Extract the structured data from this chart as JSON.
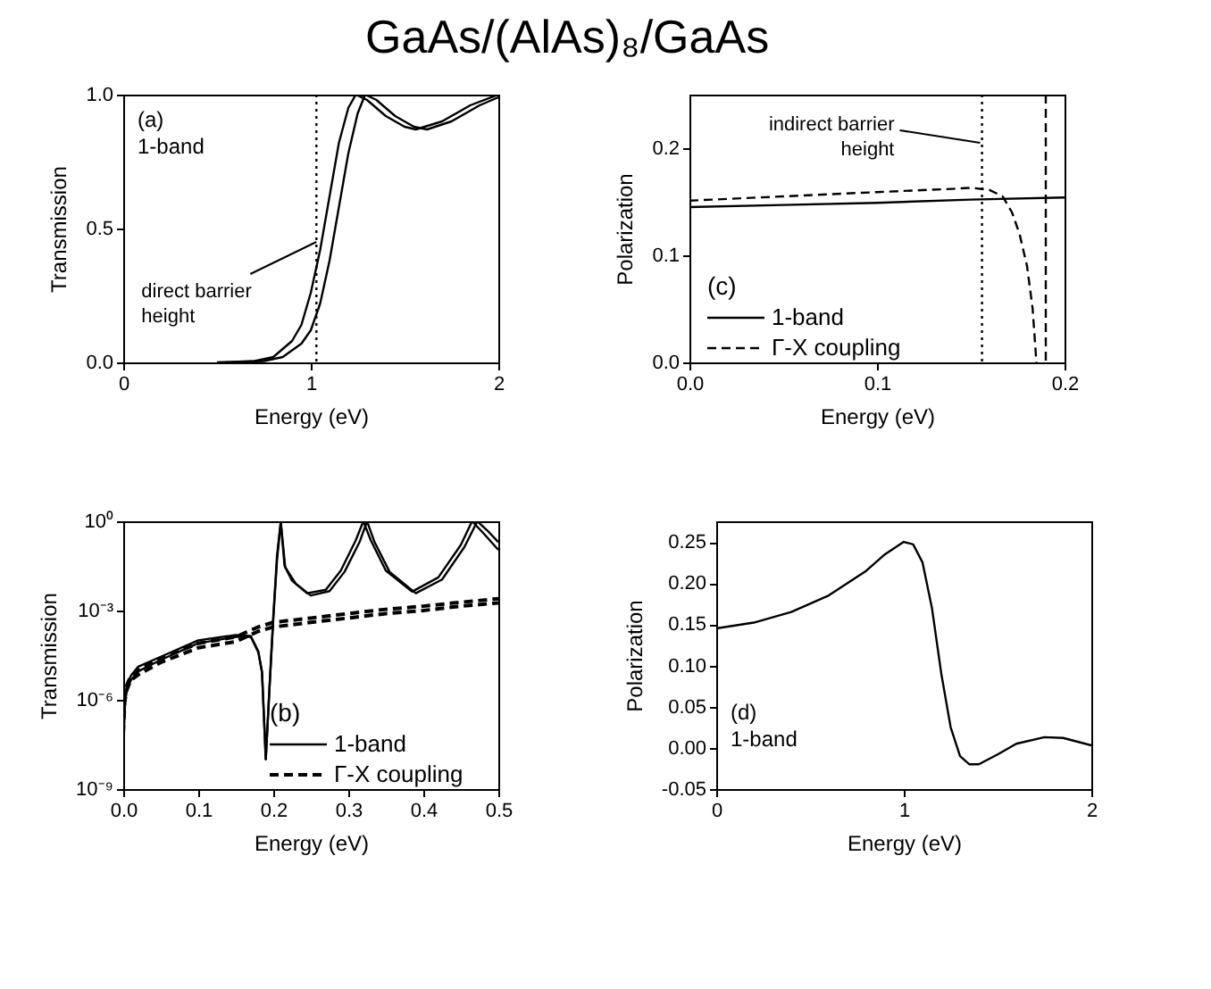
{
  "chart_data": [
    {
      "type": "line",
      "title": "GaAs/(AlAs)₈/GaAs",
      "xlabel": "Energy (eV)",
      "ylabel": "Transmission",
      "xlim": [
        0,
        2
      ],
      "xticks": [
        0,
        1,
        2
      ],
      "ylim": [
        0,
        1
      ],
      "yticks": [
        {
          "value": 0,
          "label": "0.0"
        },
        {
          "value": 0.5,
          "label": "0.5"
        },
        {
          "value": 1,
          "label": "1.0"
        }
      ],
      "grid": false,
      "series": [
        {
          "color": "#000000",
          "x": [
            0.5,
            0.7,
            0.8,
            0.9,
            0.95,
            1.0,
            1.05,
            1.1,
            1.15,
            1.2,
            1.24,
            1.3,
            1.4,
            1.5,
            1.56,
            1.7,
            1.85,
            2.0
          ],
          "values": [
            0,
            0.005,
            0.02,
            0.08,
            0.14,
            0.26,
            0.42,
            0.62,
            0.82,
            0.95,
            1.0,
            0.98,
            0.92,
            0.88,
            0.87,
            0.9,
            0.96,
            1.0
          ]
        },
        {
          "color": "#000000",
          "x": [
            0.55,
            0.75,
            0.85,
            0.95,
            1.0,
            1.05,
            1.1,
            1.15,
            1.2,
            1.25,
            1.29,
            1.35,
            1.45,
            1.55,
            1.62,
            1.75,
            1.9,
            2.0
          ],
          "values": [
            0,
            0.005,
            0.02,
            0.07,
            0.12,
            0.22,
            0.38,
            0.58,
            0.78,
            0.93,
            1.0,
            0.98,
            0.92,
            0.88,
            0.87,
            0.9,
            0.96,
            0.99
          ]
        }
      ],
      "ref_lines": [
        {
          "axis": "x",
          "value": 1.03,
          "line_style": "dotted",
          "color": "#000000"
        }
      ],
      "annotations": [
        "(a)",
        "1-band",
        {
          "text": "direct barrier height",
          "x": 1.03,
          "y": 0.45
        }
      ]
    },
    {
      "type": "line",
      "xlabel": "Energy (eV)",
      "ylabel": "Polarization",
      "xlim": [
        0,
        0.2
      ],
      "xticks": [
        {
          "value": 0,
          "label": "0.0"
        },
        {
          "value": 0.1,
          "label": "0.1"
        },
        {
          "value": 0.2,
          "label": "0.2"
        }
      ],
      "ylim": [
        0,
        0.25
      ],
      "yticks": [
        {
          "value": 0,
          "label": "0.0"
        },
        {
          "value": 0.1,
          "label": "0.1"
        },
        {
          "value": 0.2,
          "label": "0.2"
        }
      ],
      "grid": false,
      "legend": "bottom left",
      "legend_title": "(c)",
      "series": [
        {
          "name": "1-band",
          "color": "#000000",
          "line_style": "solid",
          "x": [
            0,
            0.05,
            0.1,
            0.15,
            0.2
          ],
          "values": [
            0.145,
            0.147,
            0.149,
            0.152,
            0.154
          ]
        },
        {
          "name": "Γ-X coupling",
          "color": "#000000",
          "line_style": "dashed",
          "x": [
            0,
            0.05,
            0.1,
            0.14,
            0.15,
            0.16,
            0.167,
            0.172,
            0.176,
            0.18,
            0.183,
            0.185
          ],
          "values": [
            0.151,
            0.155,
            0.159,
            0.162,
            0.163,
            0.161,
            0.155,
            0.14,
            0.12,
            0.09,
            0.05,
            0
          ]
        }
      ],
      "ref_lines": [
        {
          "axis": "x",
          "value": 0.156,
          "line_style": "dotted",
          "color": "#000000"
        },
        {
          "axis": "x",
          "value": 0.19,
          "line_style": "dashed",
          "color": "#000000"
        }
      ],
      "annotations": [
        {
          "text": "indirect barrier height",
          "x": 0.155,
          "y": 0.205
        }
      ]
    },
    {
      "type": "line",
      "xlabel": "Energy (eV)",
      "ylabel": "Transmission",
      "log": "y",
      "xlim": [
        0,
        0.5
      ],
      "xticks": [
        {
          "value": 0,
          "label": "0.0"
        },
        {
          "value": 0.1,
          "label": "0.1"
        },
        {
          "value": 0.2,
          "label": "0.2"
        },
        {
          "value": 0.3,
          "label": "0.3"
        },
        {
          "value": 0.4,
          "label": "0.4"
        },
        {
          "value": 0.5,
          "label": "0.5"
        }
      ],
      "ylim": [
        1e-09,
        1
      ],
      "yticks": [
        {
          "value": 1e-09,
          "label": "10⁻⁹"
        },
        {
          "value": 1e-06,
          "label": "10⁻⁶"
        },
        {
          "value": 0.001,
          "label": "10⁻³"
        },
        {
          "value": 1,
          "label": "10⁰"
        }
      ],
      "grid": false,
      "legend": "bottom right",
      "legend_title": "(b)",
      "series": [
        {
          "name": "1-band",
          "color": "#000000",
          "line_style": "solid",
          "x": [
            0,
            0.002,
            0.005,
            0.01,
            0.02,
            0.05,
            0.1,
            0.15,
            0.17,
            0.18,
            0.185,
            0.19,
            0.195,
            0.2,
            0.205,
            0.21,
            0.215,
            0.225,
            0.245,
            0.27,
            0.29,
            0.31,
            0.32,
            0.33,
            0.35,
            0.385,
            0.42,
            0.45,
            0.465,
            0.48,
            0.5
          ],
          "values": [
            5e-08,
            1e-06,
            3.2e-06,
            6.3e-06,
            1.3e-05,
            2.8e-05,
            0.0001,
            0.00015,
            0.00014,
            4.3e-05,
            8.9e-06,
            1e-08,
            2.8e-06,
            0.00063,
            0.071,
            1,
            0.032,
            0.01,
            0.0038,
            0.005,
            0.022,
            0.23,
            1,
            0.23,
            0.022,
            0.0043,
            0.013,
            0.16,
            1,
            0.4,
            0.11
          ]
        },
        {
          "color": "#000000",
          "line_style": "solid",
          "x": [
            0,
            0.002,
            0.005,
            0.01,
            0.02,
            0.05,
            0.1,
            0.15,
            0.17,
            0.18,
            0.185,
            0.19,
            0.195,
            0.2,
            0.205,
            0.21,
            0.216,
            0.23,
            0.25,
            0.275,
            0.295,
            0.315,
            0.325,
            0.335,
            0.355,
            0.39,
            0.425,
            0.455,
            0.472,
            0.485,
            0.5
          ],
          "values": [
            4e-08,
            7e-07,
            2.2e-06,
            4.5e-06,
            9e-06,
            2.2e-05,
            8e-05,
            0.00013,
            0.00013,
            4e-05,
            8e-06,
            1e-08,
            2.5e-06,
            0.0005,
            0.05,
            0.9,
            0.028,
            0.008,
            0.0032,
            0.0045,
            0.02,
            0.2,
            1,
            0.2,
            0.02,
            0.0038,
            0.011,
            0.14,
            1,
            0.5,
            0.2
          ]
        },
        {
          "name": "Γ-X coupling",
          "color": "#000000",
          "line_style": "dashed",
          "x": [
            0,
            0.002,
            0.005,
            0.01,
            0.02,
            0.05,
            0.1,
            0.15,
            0.18,
            0.2,
            0.25,
            0.3,
            0.35,
            0.4,
            0.45,
            0.5
          ],
          "values": [
            1e-07,
            1.3e-06,
            3.2e-06,
            6.3e-06,
            1e-05,
            2.5e-05,
            7.9e-05,
            0.00013,
            0.00028,
            0.0004,
            0.00056,
            0.00079,
            0.0011,
            0.0014,
            0.0019,
            0.0025
          ]
        },
        {
          "color": "#000000",
          "line_style": "dashed",
          "x": [
            0,
            0.002,
            0.005,
            0.01,
            0.02,
            0.05,
            0.1,
            0.15,
            0.18,
            0.2,
            0.25,
            0.3,
            0.35,
            0.4,
            0.45,
            0.5
          ],
          "values": [
            7e-08,
            9e-07,
            2.2e-06,
            4.5e-06,
            7e-06,
            1.8e-05,
            5.6e-05,
            9e-05,
            0.0002,
            0.00028,
            0.0004,
            0.00056,
            0.00079,
            0.001,
            0.0014,
            0.0018
          ]
        }
      ]
    },
    {
      "type": "line",
      "xlabel": "Energy (eV)",
      "ylabel": "Polarization",
      "xlim": [
        0,
        2
      ],
      "xticks": [
        0,
        1,
        2
      ],
      "ylim": [
        -0.05,
        0.275
      ],
      "yticks": [
        {
          "value": -0.05,
          "label": "-0.05"
        },
        {
          "value": 0,
          "label": "0.00"
        },
        {
          "value": 0.05,
          "label": "0.05"
        },
        {
          "value": 0.1,
          "label": "0.10"
        },
        {
          "value": 0.15,
          "label": "0.15"
        },
        {
          "value": 0.2,
          "label": "0.20"
        },
        {
          "value": 0.25,
          "label": "0.25"
        }
      ],
      "grid": false,
      "series": [
        {
          "color": "#000000",
          "x": [
            0,
            0.2,
            0.4,
            0.6,
            0.8,
            0.9,
            1.0,
            1.05,
            1.1,
            1.15,
            1.2,
            1.25,
            1.3,
            1.35,
            1.4,
            1.5,
            1.6,
            1.75,
            1.85,
            2.0
          ],
          "values": [
            0.145,
            0.152,
            0.165,
            0.185,
            0.215,
            0.235,
            0.25,
            0.247,
            0.225,
            0.17,
            0.09,
            0.025,
            -0.01,
            -0.02,
            -0.02,
            -0.008,
            0.005,
            0.013,
            0.012,
            0.003
          ]
        }
      ],
      "annotations": [
        "(d)",
        "1-band"
      ]
    }
  ]
}
